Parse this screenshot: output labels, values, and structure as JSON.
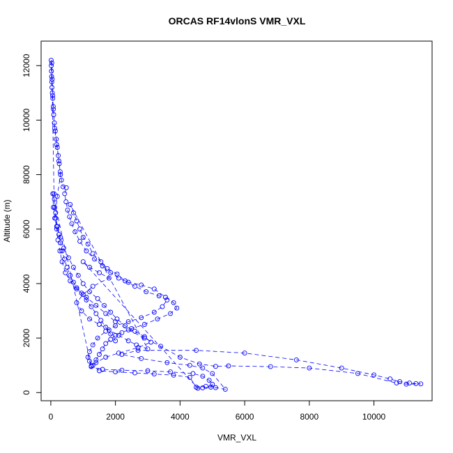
{
  "chart_data": {
    "type": "scatter",
    "title": "ORCAS RF14vlonS VMR_VXL",
    "xlabel": "VMR_VXL",
    "ylabel": "Altitude (m)",
    "xlim": [
      -300,
      11800
    ],
    "ylim": [
      -300,
      12900
    ],
    "xticks": [
      0,
      2000,
      4000,
      6000,
      8000,
      10000
    ],
    "yticks": [
      0,
      2000,
      4000,
      6000,
      8000,
      10000,
      12000
    ],
    "xtick_labels": [
      "0",
      "2000",
      "4000",
      "6000",
      "8000",
      "10000"
    ],
    "ytick_labels": [
      "0",
      "2000",
      "4000",
      "6000",
      "8000",
      "10000",
      "12000"
    ],
    "grid": false,
    "marker": "open-circle",
    "line": "dashed-connecting",
    "color": "#0000ff",
    "series": [
      {
        "name": "profile",
        "points": [
          [
            10,
            12200
          ],
          [
            15,
            12000
          ],
          [
            20,
            11800
          ],
          [
            25,
            11600
          ],
          [
            30,
            11400
          ],
          [
            35,
            11200
          ],
          [
            45,
            11000
          ],
          [
            60,
            10800
          ],
          [
            75,
            10500
          ],
          [
            90,
            10200
          ],
          [
            110,
            9900
          ],
          [
            140,
            9600
          ],
          [
            170,
            9300
          ],
          [
            200,
            9000
          ],
          [
            230,
            8700
          ],
          [
            260,
            8400
          ],
          [
            290,
            8100
          ],
          [
            330,
            7800
          ],
          [
            380,
            7550
          ],
          [
            480,
            7520
          ],
          [
            430,
            7300
          ],
          [
            470,
            7000
          ],
          [
            520,
            6700
          ],
          [
            580,
            6450
          ],
          [
            650,
            6200
          ],
          [
            750,
            5900
          ],
          [
            900,
            5550
          ],
          [
            1100,
            5200
          ],
          [
            1350,
            4900
          ],
          [
            1600,
            4650
          ],
          [
            1850,
            4400
          ],
          [
            2100,
            4200
          ],
          [
            2400,
            4050
          ],
          [
            2800,
            3950
          ],
          [
            3200,
            3800
          ],
          [
            3550,
            3500
          ],
          [
            3800,
            3300
          ],
          [
            3900,
            3100
          ],
          [
            3700,
            2900
          ],
          [
            3300,
            2700
          ],
          [
            2900,
            2500
          ],
          [
            2500,
            2350
          ],
          [
            2200,
            2200
          ],
          [
            2000,
            2100
          ],
          [
            1850,
            1950
          ],
          [
            1700,
            1800
          ],
          [
            1600,
            1600
          ],
          [
            1500,
            1400
          ],
          [
            1400,
            1200
          ],
          [
            1300,
            1000
          ],
          [
            1500,
            800
          ],
          [
            2000,
            760
          ],
          [
            2600,
            720
          ],
          [
            3200,
            680
          ],
          [
            3800,
            640
          ],
          [
            4300,
            560
          ],
          [
            4500,
            200
          ],
          [
            4800,
            230
          ],
          [
            5100,
            180
          ],
          [
            5400,
            120
          ],
          [
            5000,
            700
          ],
          [
            4700,
            900
          ],
          [
            4300,
            1000
          ],
          [
            3600,
            1100
          ],
          [
            2800,
            1250
          ],
          [
            2200,
            1400
          ],
          [
            2700,
            1550
          ],
          [
            4500,
            1550
          ],
          [
            6000,
            1450
          ],
          [
            7600,
            1200
          ],
          [
            9000,
            900
          ],
          [
            10000,
            650
          ],
          [
            10500,
            500
          ],
          [
            10800,
            400
          ],
          [
            11100,
            350
          ],
          [
            11300,
            330
          ],
          [
            11450,
            320
          ],
          [
            11000,
            310
          ],
          [
            10700,
            350
          ],
          [
            9500,
            700
          ],
          [
            8000,
            900
          ],
          [
            6800,
            950
          ],
          [
            5500,
            980
          ],
          [
            5100,
            960
          ],
          [
            4600,
            1050
          ],
          [
            4000,
            1300
          ],
          [
            3400,
            1700
          ],
          [
            2900,
            2000
          ],
          [
            2400,
            2300
          ],
          [
            2000,
            2600
          ],
          [
            1700,
            2900
          ],
          [
            1400,
            3200
          ],
          [
            1100,
            3500
          ],
          [
            800,
            3800
          ],
          [
            600,
            4100
          ],
          [
            450,
            4400
          ],
          [
            350,
            4800
          ],
          [
            280,
            5200
          ],
          [
            220,
            5600
          ],
          [
            180,
            6000
          ],
          [
            150,
            6400
          ],
          [
            120,
            6800
          ],
          [
            110,
            7100
          ],
          [
            100,
            7300
          ],
          [
            30,
            12100
          ],
          [
            40,
            11500
          ],
          [
            55,
            10900
          ],
          [
            80,
            10400
          ],
          [
            120,
            9700
          ],
          [
            180,
            9100
          ],
          [
            250,
            8500
          ],
          [
            300,
            8000
          ],
          [
            200,
            7200
          ],
          [
            150,
            6600
          ],
          [
            200,
            6100
          ],
          [
            300,
            5700
          ],
          [
            400,
            5300
          ],
          [
            550,
            4950
          ],
          [
            700,
            4600
          ],
          [
            850,
            4300
          ],
          [
            1000,
            4000
          ],
          [
            1200,
            3700
          ],
          [
            1450,
            3450
          ],
          [
            1650,
            3200
          ],
          [
            1850,
            2950
          ],
          [
            2050,
            2700
          ],
          [
            2300,
            2450
          ],
          [
            2600,
            2250
          ],
          [
            2900,
            2050
          ],
          [
            3100,
            1850
          ],
          [
            2700,
            1650
          ],
          [
            2100,
            1450
          ],
          [
            1700,
            1300
          ],
          [
            1400,
            1100
          ],
          [
            1250,
            950
          ],
          [
            1600,
            850
          ],
          [
            2200,
            820
          ],
          [
            3000,
            800
          ],
          [
            3700,
            760
          ],
          [
            4400,
            700
          ],
          [
            4700,
            600
          ],
          [
            4900,
            450
          ],
          [
            5000,
            300
          ],
          [
            4950,
            200
          ],
          [
            4700,
            170
          ],
          [
            4550,
            160
          ],
          [
            1000,
            4800
          ],
          [
            1200,
            4600
          ],
          [
            1500,
            4400
          ],
          [
            1800,
            4200
          ],
          [
            1300,
            3900
          ],
          [
            1000,
            3600
          ],
          [
            800,
            3300
          ],
          [
            950,
            3000
          ],
          [
            1200,
            2700
          ],
          [
            1500,
            2500
          ],
          [
            1800,
            2300
          ],
          [
            2100,
            2100
          ],
          [
            2400,
            1900
          ],
          [
            2650,
            1750
          ],
          [
            3000,
            1600
          ],
          [
            600,
            6900
          ],
          [
            700,
            6600
          ],
          [
            800,
            6300
          ],
          [
            900,
            6000
          ],
          [
            1000,
            5700
          ],
          [
            1150,
            5450
          ],
          [
            1300,
            5100
          ],
          [
            1550,
            4800
          ],
          [
            1750,
            4550
          ],
          [
            2050,
            4350
          ],
          [
            2300,
            4100
          ],
          [
            2600,
            3900
          ],
          [
            2950,
            3700
          ],
          [
            3350,
            3550
          ],
          [
            3600,
            3400
          ],
          [
            3450,
            3150
          ],
          [
            3200,
            2950
          ],
          [
            2800,
            2750
          ],
          [
            2400,
            2600
          ],
          [
            2000,
            2450
          ],
          [
            1700,
            2250
          ],
          [
            1450,
            2000
          ],
          [
            1300,
            1750
          ],
          [
            1200,
            1500
          ],
          [
            1150,
            1300
          ],
          [
            1200,
            1150
          ],
          [
            1250,
            980
          ],
          [
            60,
            7300
          ],
          [
            80,
            6800
          ],
          [
            120,
            6400
          ],
          [
            180,
            6100
          ],
          [
            250,
            5800
          ],
          [
            300,
            5500
          ],
          [
            350,
            5200
          ],
          [
            420,
            4900
          ],
          [
            500,
            4600
          ],
          [
            600,
            4300
          ],
          [
            700,
            4050
          ],
          [
            800,
            3850
          ],
          [
            950,
            3650
          ],
          [
            1100,
            3400
          ],
          [
            1250,
            3150
          ],
          [
            1400,
            2900
          ],
          [
            1550,
            2650
          ],
          [
            1700,
            2400
          ],
          [
            1850,
            2150
          ],
          [
            2000,
            1900
          ]
        ]
      }
    ]
  }
}
